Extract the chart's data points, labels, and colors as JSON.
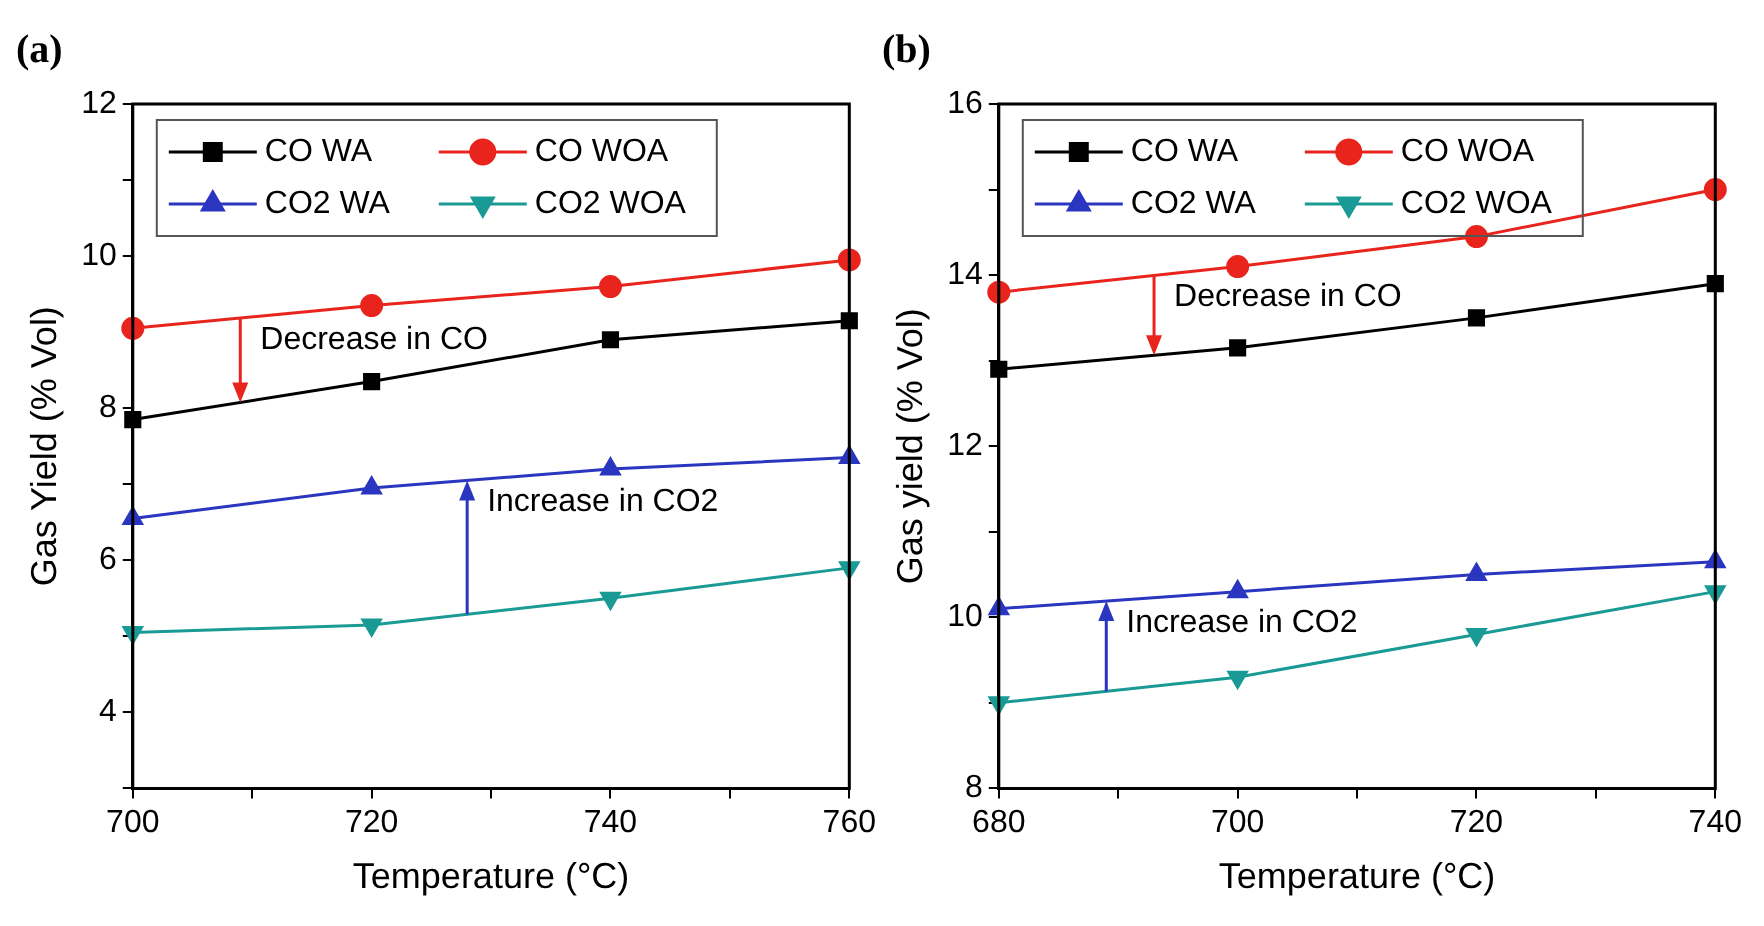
{
  "chart_data": [
    {
      "type": "line",
      "title": "(a)",
      "xlabel": "Temperature (°C)",
      "ylabel": "Gas Yield (% Vol)",
      "x": [
        700,
        720,
        740,
        760
      ],
      "series": [
        {
          "name": "CO WA",
          "color": "#000000",
          "marker": "square",
          "values": [
            7.85,
            8.35,
            8.9,
            9.15
          ]
        },
        {
          "name": "CO WOA",
          "color": "#e8241c",
          "marker": "circle",
          "values": [
            9.05,
            9.35,
            9.6,
            9.95
          ]
        },
        {
          "name": "CO2 WA",
          "color": "#2a35c0",
          "marker": "triangle",
          "values": [
            6.55,
            6.95,
            7.2,
            7.35
          ]
        },
        {
          "name": "CO2 WOA",
          "color": "#1a9a94",
          "marker": "triangle-down",
          "values": [
            5.05,
            5.15,
            5.5,
            5.9
          ]
        }
      ],
      "xlim": [
        700,
        760
      ],
      "xticks": [
        700,
        {
          "value": 710,
          "label": null
        },
        720,
        {
          "value": 730,
          "label": null
        },
        740,
        {
          "value": 750,
          "label": null
        },
        760
      ],
      "ylim": [
        3,
        12
      ],
      "yticks": [
        {
          "value": 3,
          "label": null
        },
        4,
        {
          "value": 5,
          "label": null
        },
        6,
        {
          "value": 7,
          "label": null
        },
        8,
        {
          "value": 9,
          "label": null
        },
        10,
        {
          "value": 11,
          "label": null
        },
        12
      ],
      "annotations": [
        {
          "text": "Decrease in CO",
          "x": 709,
          "y": 9.18
        },
        {
          "text": "Increase in CO2",
          "x": 728,
          "y": 5.29
        }
      ],
      "legend": "top left",
      "grid": false
    },
    {
      "type": "line",
      "title": "(b)",
      "xlabel": "Temperature (°C)",
      "ylabel": "Gas yield (% Vol)",
      "x": [
        680,
        700,
        720,
        740
      ],
      "series": [
        {
          "name": "CO WA",
          "color": "#000000",
          "marker": "square",
          "values": [
            12.9,
            13.15,
            13.5,
            13.9
          ]
        },
        {
          "name": "CO WOA",
          "color": "#e8241c",
          "marker": "circle",
          "values": [
            13.8,
            14.1,
            14.45,
            15.0
          ]
        },
        {
          "name": "CO2 WA",
          "color": "#2a35c0",
          "marker": "triangle",
          "values": [
            10.1,
            10.3,
            10.5,
            10.65
          ]
        },
        {
          "name": "CO2 WOA",
          "color": "#1a9a94",
          "marker": "triangle-down",
          "values": [
            9.0,
            9.3,
            9.8,
            10.3
          ]
        }
      ],
      "xlim": [
        680,
        740
      ],
      "xticks": [
        680,
        {
          "value": 690,
          "label": null
        },
        700,
        {
          "value": 710,
          "label": null
        },
        720,
        {
          "value": 730,
          "label": null
        },
        740
      ],
      "ylim": [
        8,
        16
      ],
      "yticks": [
        8,
        {
          "value": 9,
          "label": null
        },
        10,
        {
          "value": 11,
          "label": null
        },
        12,
        {
          "value": 13,
          "label": null
        },
        14,
        {
          "value": 15,
          "label": null
        },
        16
      ],
      "annotations": [
        {
          "text": "Decrease in CO",
          "x": 693,
          "y": 14.0
        },
        {
          "text": "Increase in CO2",
          "x": 689,
          "y": 9.13
        }
      ],
      "legend": "top left",
      "grid": false
    }
  ]
}
